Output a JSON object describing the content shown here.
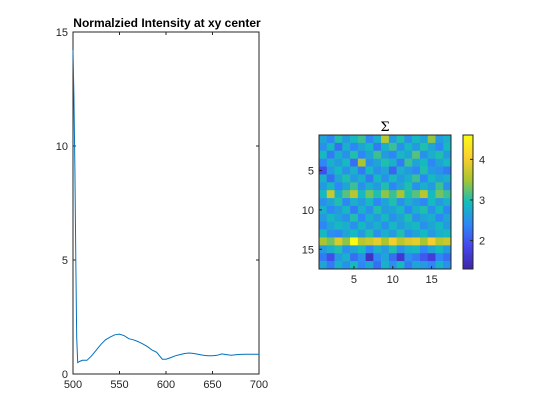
{
  "colors": {
    "axis": "#262626",
    "line": "#0072BD",
    "colormap": [
      "#3E26A8",
      "#4746EB",
      "#2E87F7",
      "#12BEB9",
      "#A9C630",
      "#FCCE2E",
      "#F9FB15"
    ]
  },
  "chart_data": [
    {
      "type": "line",
      "title": "Normalzied Intensity at xy center",
      "xlabel": "",
      "ylabel": "",
      "xlim": [
        500,
        700
      ],
      "ylim": [
        0,
        15
      ],
      "xticks": [
        "500",
        "550",
        "600",
        "650",
        "700"
      ],
      "yticks": [
        "0",
        "5",
        "10",
        "15"
      ],
      "grid": false,
      "series": [
        {
          "x": [
            500,
            501,
            502,
            503,
            504,
            505,
            507,
            510,
            515,
            520,
            525,
            530,
            535,
            540,
            545,
            550,
            555,
            560,
            565,
            570,
            575,
            580,
            585,
            590,
            593,
            596,
            600,
            605,
            610,
            615,
            620,
            625,
            630,
            635,
            640,
            645,
            650,
            655,
            660,
            665,
            670,
            675,
            680,
            685,
            690,
            695,
            700
          ],
          "y": [
            14.2,
            12.2,
            9.0,
            5.0,
            1.6,
            0.5,
            0.55,
            0.6,
            0.6,
            0.8,
            1.05,
            1.3,
            1.5,
            1.62,
            1.72,
            1.75,
            1.68,
            1.55,
            1.5,
            1.42,
            1.32,
            1.2,
            1.05,
            0.95,
            0.8,
            0.65,
            0.65,
            0.72,
            0.8,
            0.85,
            0.9,
            0.92,
            0.9,
            0.86,
            0.82,
            0.8,
            0.8,
            0.82,
            0.88,
            0.85,
            0.82,
            0.84,
            0.86,
            0.87,
            0.87,
            0.87,
            0.87
          ]
        }
      ]
    },
    {
      "type": "heatmap",
      "title": "Σ",
      "xticks": [
        "5",
        "10",
        "15"
      ],
      "yticks": [
        "5",
        "10",
        "15"
      ],
      "xlim": [
        0.5,
        17.5
      ],
      "ylim": [
        0.5,
        17.5
      ],
      "colorbar": {
        "ticks": [
          "2",
          "3",
          "4"
        ],
        "range": [
          1.3,
          4.6
        ]
      },
      "values": [
        [
          2.7,
          2.4,
          3.0,
          2.6,
          2.9,
          3.1,
          2.4,
          2.8,
          3.6,
          2.6,
          3.0,
          2.5,
          2.9,
          2.7,
          3.4,
          2.6,
          2.8
        ],
        [
          2.5,
          2.9,
          2.2,
          2.8,
          2.4,
          2.7,
          2.9,
          2.3,
          2.8,
          3.1,
          2.5,
          2.9,
          2.6,
          3.0,
          2.7,
          2.4,
          2.9
        ],
        [
          2.9,
          2.3,
          2.8,
          2.5,
          3.0,
          2.4,
          2.7,
          3.1,
          2.6,
          2.4,
          2.9,
          2.7,
          3.2,
          2.5,
          2.8,
          3.0,
          2.6
        ],
        [
          2.4,
          2.8,
          2.6,
          2.9,
          2.2,
          3.5,
          2.5,
          2.7,
          3.0,
          2.8,
          2.3,
          3.1,
          2.7,
          2.9,
          2.4,
          2.7,
          2.9
        ],
        [
          1.9,
          2.6,
          2.9,
          2.5,
          2.8,
          2.3,
          2.9,
          2.5,
          2.7,
          2.1,
          2.8,
          2.6,
          2.4,
          3.0,
          2.6,
          2.5,
          2.3
        ],
        [
          2.8,
          2.2,
          2.7,
          3.0,
          2.6,
          2.8,
          2.3,
          2.9,
          2.5,
          2.9,
          2.6,
          2.8,
          3.1,
          2.4,
          2.9,
          2.7,
          2.8
        ],
        [
          2.6,
          2.9,
          2.4,
          2.7,
          3.1,
          2.5,
          2.8,
          2.6,
          3.0,
          2.4,
          2.7,
          3.0,
          2.5,
          2.8,
          2.6,
          3.1,
          2.5
        ],
        [
          2.9,
          3.7,
          2.8,
          3.2,
          3.6,
          2.9,
          3.3,
          3.0,
          3.4,
          3.1,
          3.5,
          3.0,
          3.2,
          3.6,
          2.9,
          3.3,
          3.1
        ],
        [
          2.5,
          2.7,
          3.0,
          2.4,
          2.8,
          2.6,
          2.9,
          2.4,
          2.7,
          3.0,
          2.5,
          2.8,
          2.6,
          2.4,
          2.9,
          2.6,
          2.8
        ],
        [
          2.8,
          2.4,
          2.6,
          2.9,
          2.3,
          2.8,
          2.5,
          3.0,
          2.6,
          2.7,
          2.9,
          2.4,
          2.8,
          3.0,
          2.5,
          2.9,
          2.4
        ],
        [
          2.6,
          2.9,
          2.7,
          2.5,
          3.0,
          2.4,
          2.8,
          2.6,
          2.9,
          2.5,
          2.7,
          3.0,
          2.5,
          2.7,
          2.8,
          2.4,
          2.7
        ],
        [
          2.4,
          2.7,
          2.9,
          2.8,
          2.5,
          2.9,
          2.6,
          2.8,
          2.5,
          2.9,
          2.6,
          2.8,
          2.9,
          2.5,
          2.7,
          2.9,
          2.6
        ],
        [
          2.9,
          2.5,
          2.4,
          2.7,
          2.9,
          2.6,
          3.0,
          2.5,
          2.8,
          2.6,
          3.0,
          2.5,
          2.7,
          2.9,
          2.6,
          2.8,
          2.9
        ],
        [
          3.5,
          3.3,
          3.8,
          3.4,
          4.6,
          3.6,
          3.7,
          3.9,
          3.5,
          4.0,
          3.6,
          3.8,
          3.9,
          3.5,
          4.0,
          3.6,
          3.7
        ],
        [
          2.6,
          2.8,
          3.0,
          2.5,
          2.7,
          2.9,
          2.4,
          2.8,
          2.6,
          3.0,
          2.5,
          2.8,
          2.9,
          2.4,
          2.7,
          2.9,
          2.6
        ],
        [
          2.3,
          1.9,
          2.6,
          2.8,
          2.2,
          2.5,
          1.5,
          2.4,
          2.7,
          2.2,
          1.6,
          2.5,
          2.3,
          2.0,
          1.7,
          2.4,
          2.2
        ],
        [
          2.7,
          2.3,
          2.8,
          2.5,
          2.9,
          2.4,
          2.7,
          2.2,
          2.8,
          2.5,
          2.9,
          2.3,
          2.7,
          2.6,
          2.4,
          2.8,
          2.5
        ]
      ]
    }
  ]
}
